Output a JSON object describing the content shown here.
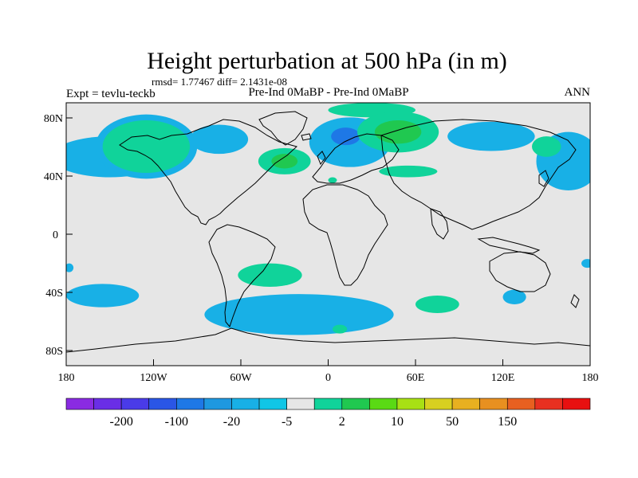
{
  "header": {
    "title": "Height perturbation at 500 hPa (in m)",
    "stats": "rmsd= 1.77467 diff= 2.1431e-08",
    "left_label": "Expt = tevlu-teckb",
    "center_label": "Pre-Ind 0MaBP - Pre-Ind 0MaBP",
    "right_label": "ANN"
  },
  "map": {
    "background_color": "#e6e6e6",
    "lat_ticks": [
      "80N",
      "40N",
      "0",
      "40S",
      "80S"
    ],
    "lon_ticks": [
      "180",
      "120W",
      "60W",
      "0",
      "60E",
      "120E",
      "180"
    ]
  },
  "colorbar": {
    "colors": [
      "#8a2be2",
      "#6a2ee6",
      "#4a3be8",
      "#2a56e6",
      "#1e78e6",
      "#1e98e0",
      "#18b0e6",
      "#10c6e6",
      "#e6e6e6",
      "#10d39a",
      "#20c850",
      "#5ada14",
      "#a8e014",
      "#d8d020",
      "#e8b020",
      "#e89020",
      "#e86020",
      "#e83020",
      "#e81010"
    ],
    "labels": [
      "-200",
      "-100",
      "-20",
      "-5",
      "2",
      "10",
      "50",
      "150"
    ],
    "label_boundary_index": [
      1,
      3,
      5,
      7,
      9,
      11,
      13,
      15
    ]
  },
  "anomaly_regions": [
    {
      "name": "nw-pacific-cyan",
      "color": "#18b0e6",
      "lon": -150,
      "lat": 48,
      "rlon": 40,
      "rlat": 14
    },
    {
      "name": "alaska-cyan",
      "color": "#18b0e6",
      "lon": -125,
      "lat": 55,
      "rlon": 35,
      "rlat": 22
    },
    {
      "name": "alaska-green",
      "color": "#20c850",
      "lon": -125,
      "lat": 55,
      "rlon": 24,
      "rlat": 14
    },
    {
      "name": "alaska-light-green",
      "color": "#10d39a",
      "lon": -125,
      "lat": 55,
      "rlon": 30,
      "rlat": 18
    },
    {
      "name": "canada-cyan",
      "color": "#18b0e6",
      "lon": -75,
      "lat": 60,
      "rlon": 20,
      "rlat": 10
    },
    {
      "name": "n-atlantic-green",
      "color": "#10d39a",
      "lon": -30,
      "lat": 45,
      "rlon": 18,
      "rlat": 9
    },
    {
      "name": "n-atlantic-core",
      "color": "#20c850",
      "lon": -30,
      "lat": 45,
      "rlon": 9,
      "rlat": 5
    },
    {
      "name": "europe-cyan",
      "color": "#18b0e6",
      "lon": 15,
      "lat": 58,
      "rlon": 28,
      "rlat": 17
    },
    {
      "name": "europe-blue",
      "color": "#1e78e6",
      "lon": 12,
      "lat": 62,
      "rlon": 10,
      "rlat": 6
    },
    {
      "name": "arctic-green",
      "color": "#10d39a",
      "lon": 30,
      "lat": 80,
      "rlon": 30,
      "rlat": 5
    },
    {
      "name": "russia-green",
      "color": "#10d39a",
      "lon": 48,
      "lat": 65,
      "rlon": 28,
      "rlat": 14
    },
    {
      "name": "russia-core",
      "color": "#20c850",
      "lon": 48,
      "lat": 65,
      "rlon": 16,
      "rlat": 8
    },
    {
      "name": "caspian-green",
      "color": "#10d39a",
      "lon": 55,
      "lat": 38,
      "rlon": 20,
      "rlat": 4
    },
    {
      "name": "mediterranean-green",
      "color": "#10d39a",
      "lon": 3,
      "lat": 32,
      "rlon": 3,
      "rlat": 2
    },
    {
      "name": "siberia-cyan",
      "color": "#18b0e6",
      "lon": 112,
      "lat": 62,
      "rlon": 30,
      "rlat": 10
    },
    {
      "name": "japan-cyan",
      "color": "#18b0e6",
      "lon": 165,
      "lat": 45,
      "rlon": 22,
      "rlat": 20
    },
    {
      "name": "kamchatka-green",
      "color": "#10d39a",
      "lon": 150,
      "lat": 55,
      "rlon": 10,
      "rlat": 7
    },
    {
      "name": "s-atlantic-green",
      "color": "#10d39a",
      "lon": -40,
      "lat": -33,
      "rlon": 22,
      "rlat": 8
    },
    {
      "name": "southern-cyan-band",
      "color": "#18b0e6",
      "lon": -20,
      "lat": -60,
      "rlon": 65,
      "rlat": 14
    },
    {
      "name": "s-pacific-cyan",
      "color": "#18b0e6",
      "lon": -155,
      "lat": -47,
      "rlon": 25,
      "rlat": 8
    },
    {
      "name": "s-indian-green",
      "color": "#10d39a",
      "lon": 75,
      "lat": -53,
      "rlon": 15,
      "rlat": 6
    },
    {
      "name": "s-indian-cyan",
      "color": "#18b0e6",
      "lon": 128,
      "lat": -48,
      "rlon": 8,
      "rlat": 5
    },
    {
      "name": "antarctic-green",
      "color": "#10d39a",
      "lon": 8,
      "lat": -70,
      "rlon": 5,
      "rlat": 3
    },
    {
      "name": "west-pacific-edge-cyan",
      "color": "#18b0e6",
      "lon": 178,
      "lat": -25,
      "rlon": 4,
      "rlat": 3
    },
    {
      "name": "east-edge-cyan",
      "color": "#18b0e6",
      "lon": -178,
      "lat": -28,
      "rlon": 3,
      "rlat": 3
    }
  ]
}
